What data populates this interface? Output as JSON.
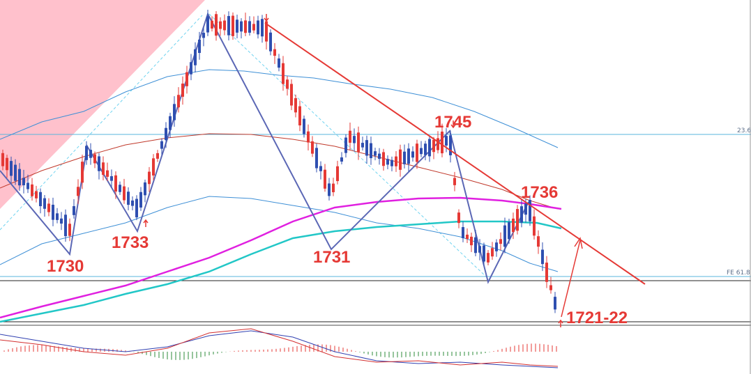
{
  "chart_data": {
    "type": "candlestick",
    "symbol": "",
    "colors": {
      "up": "#e53935",
      "down": "#2f4fb0",
      "trendline": "#e53935",
      "zigzag": "#5b67b5",
      "ma_pink": "#e020e0",
      "ma_teal": "#22c7c7",
      "ma_red": "#c0392b",
      "band": "#3d8fd6",
      "fib": "#5ab5dd",
      "zone": "#ffc1cc",
      "macd_main": "#2f3fb0",
      "macd_signal": "#d32f2f"
    },
    "labels": [
      {
        "text": "1730",
        "role": "swing-low"
      },
      {
        "text": "1733",
        "role": "swing-low"
      },
      {
        "text": "1731",
        "role": "swing-low"
      },
      {
        "text": "1745",
        "role": "swing-high"
      },
      {
        "text": "1736",
        "role": "swing-high"
      },
      {
        "text": "1721-22",
        "role": "current-low"
      }
    ],
    "fib_levels": [
      {
        "text": "23.6"
      },
      {
        "text": "FE 61.8"
      }
    ],
    "indicator": {
      "type": "macd",
      "grid": false
    },
    "grid": false
  }
}
